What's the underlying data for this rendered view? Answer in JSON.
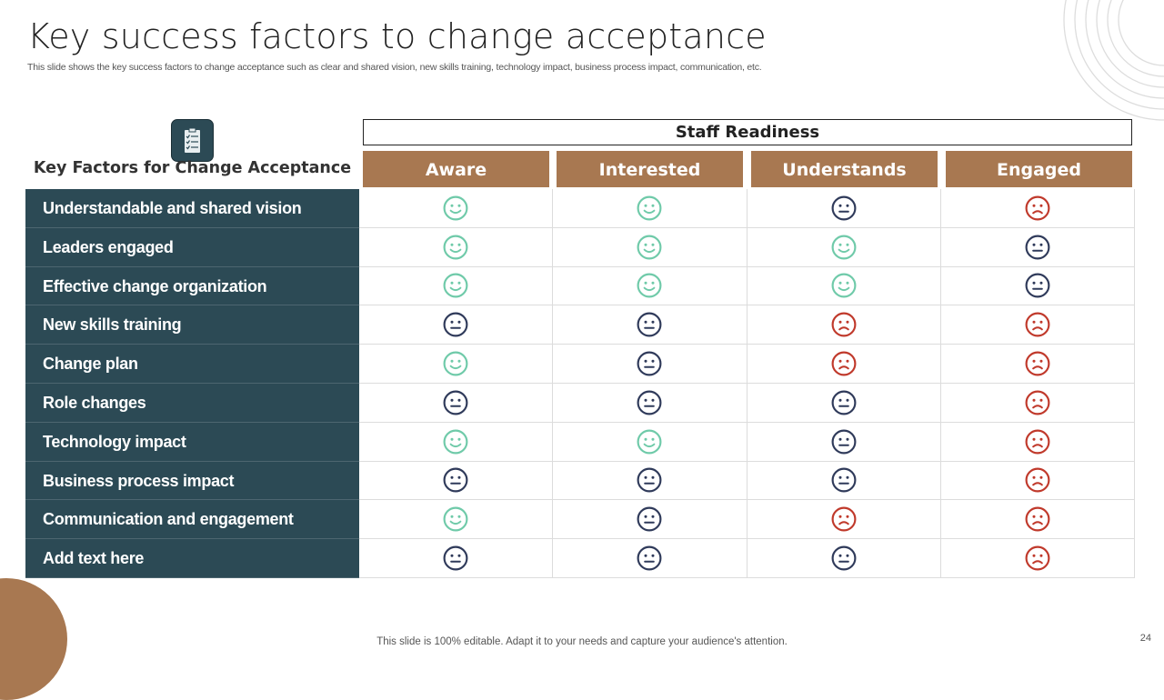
{
  "title": "Key success factors to change acceptance",
  "subtitle": "This slide shows the key success factors to change acceptance such as clear and shared vision, new skills training, technology impact, business process impact, communication, etc.",
  "table": {
    "row_header": "Key Factors for Change Acceptance",
    "group_header": "Staff Readiness",
    "columns": [
      "Aware",
      "Interested",
      "Understands",
      "Engaged"
    ],
    "rows": [
      {
        "label": "Understandable and shared vision",
        "ratings": [
          "happy",
          "happy",
          "neutral",
          "sad"
        ]
      },
      {
        "label": "Leaders engaged",
        "ratings": [
          "happy",
          "happy",
          "happy",
          "neutral"
        ]
      },
      {
        "label": "Effective change organization",
        "ratings": [
          "happy",
          "happy",
          "happy",
          "neutral"
        ]
      },
      {
        "label": "New skills training",
        "ratings": [
          "neutral",
          "neutral",
          "sad",
          "sad"
        ]
      },
      {
        "label": "Change plan",
        "ratings": [
          "happy",
          "neutral",
          "sad",
          "sad"
        ]
      },
      {
        "label": "Role changes",
        "ratings": [
          "neutral",
          "neutral",
          "neutral",
          "sad"
        ]
      },
      {
        "label": "Technology impact",
        "ratings": [
          "happy",
          "happy",
          "neutral",
          "sad"
        ]
      },
      {
        "label": "Business process impact",
        "ratings": [
          "neutral",
          "neutral",
          "neutral",
          "sad"
        ]
      },
      {
        "label": "Communication and engagement",
        "ratings": [
          "happy",
          "neutral",
          "sad",
          "sad"
        ]
      },
      {
        "label": "Add text here",
        "ratings": [
          "neutral",
          "neutral",
          "neutral",
          "sad"
        ]
      }
    ]
  },
  "colors": {
    "happy": "#6fcaa9",
    "neutral": "#2f3a5a",
    "sad": "#c0392b",
    "brown": "#a87851",
    "teal": "#2c4a55"
  },
  "icons": {
    "header": "checklist-icon"
  },
  "footer": "This slide is 100% editable. Adapt it to your needs and capture your audience's attention.",
  "page_number": "24"
}
